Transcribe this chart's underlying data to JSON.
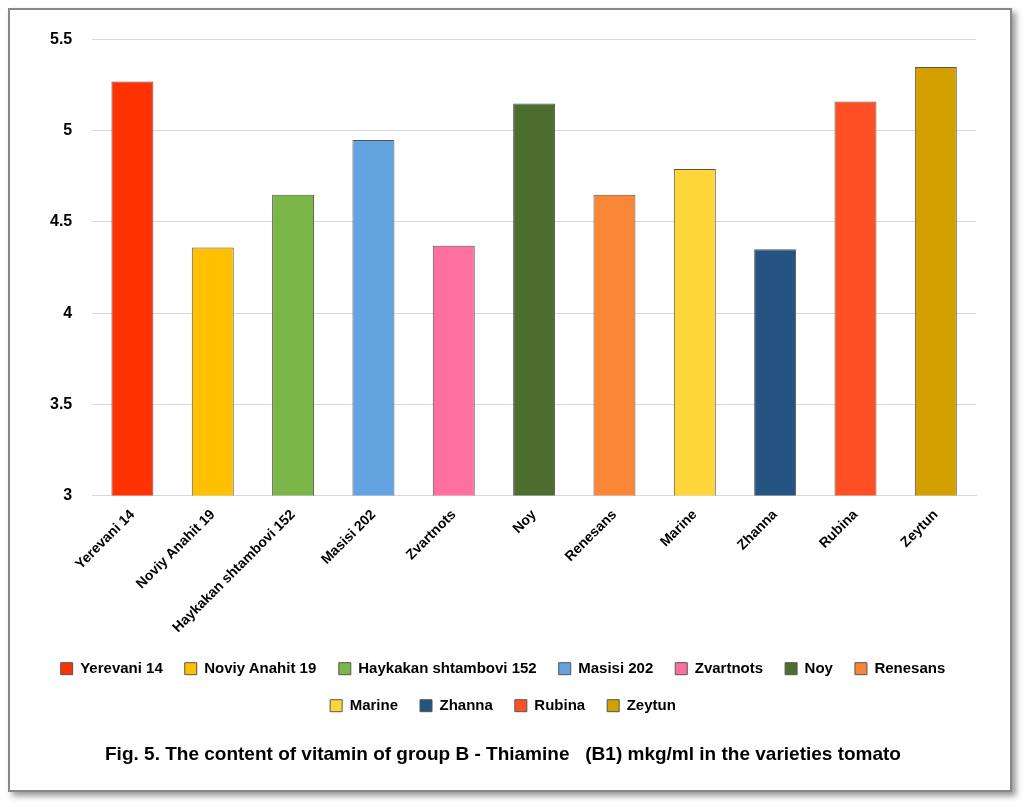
{
  "chart_data": {
    "type": "bar",
    "title": "Fig. 5. The content of vitamin of group B - Thiamine   (B1) mkg/ml in the varieties tomato",
    "categories": [
      "Yerevani 14",
      "Noviy Anahit 19",
      "Haykakan shtambovi 152",
      "Masisi 202",
      "Zvartnots",
      "Noy",
      "Renesans",
      "Marine",
      "Zhanna",
      "Rubina",
      "Zeytun"
    ],
    "series": [
      {
        "name": "Yerevani 14",
        "color": "#ff3300",
        "values": [
          5.27,
          null,
          null,
          null,
          null,
          null,
          null,
          null,
          null,
          null,
          null
        ]
      },
      {
        "name": "Noviy Anahit 19",
        "color": "#ffc000",
        "values": [
          null,
          4.36,
          null,
          null,
          null,
          null,
          null,
          null,
          null,
          null,
          null
        ]
      },
      {
        "name": "Haykakan shtambovi 152",
        "color": "#7ab648",
        "values": [
          null,
          null,
          4.65,
          null,
          null,
          null,
          null,
          null,
          null,
          null,
          null
        ]
      },
      {
        "name": "Masisi 202",
        "color": "#62a3e0",
        "values": [
          null,
          null,
          null,
          4.95,
          null,
          null,
          null,
          null,
          null,
          null,
          null
        ]
      },
      {
        "name": "Zvartnots",
        "color": "#ff6fa0",
        "values": [
          null,
          null,
          null,
          null,
          4.37,
          null,
          null,
          null,
          null,
          null,
          null
        ]
      },
      {
        "name": "Noy",
        "color": "#4e6e30",
        "values": [
          null,
          null,
          null,
          null,
          null,
          5.15,
          null,
          null,
          null,
          null,
          null
        ]
      },
      {
        "name": "Renesans",
        "color": "#fa8638",
        "values": [
          null,
          null,
          null,
          null,
          null,
          null,
          4.65,
          null,
          null,
          null,
          null
        ]
      },
      {
        "name": "Marine",
        "color": "#ffd53a",
        "values": [
          null,
          null,
          null,
          null,
          null,
          null,
          null,
          4.79,
          null,
          null,
          null
        ]
      },
      {
        "name": "Zhanna",
        "color": "#255482",
        "values": [
          null,
          null,
          null,
          null,
          null,
          null,
          null,
          null,
          4.35,
          null,
          null
        ]
      },
      {
        "name": "Rubina",
        "color": "#ff5025",
        "values": [
          null,
          null,
          null,
          null,
          null,
          null,
          null,
          null,
          null,
          5.16,
          null
        ]
      },
      {
        "name": "Zeytun",
        "color": "#d4a000",
        "values": [
          null,
          null,
          null,
          null,
          null,
          null,
          null,
          null,
          null,
          null,
          5.35
        ]
      }
    ],
    "ylim": [
      3,
      5.5
    ],
    "yticks": [
      3,
      3.5,
      4,
      4.5,
      5,
      5.5
    ],
    "grid": "y",
    "legend": "bottom"
  }
}
